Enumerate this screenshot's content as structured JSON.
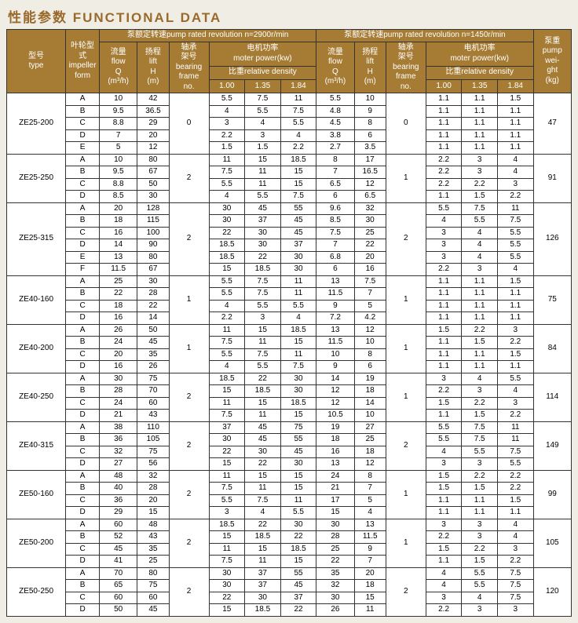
{
  "title": "性能参数 FUNCTIONAL DATA",
  "header": {
    "type": "型号\ntype",
    "impeller": "叶轮型式\nimpeller\nform",
    "rev2900": "泵额定转速pump rated revolution  n=2900r/min",
    "rev1450": "泵额定转速pump rated revolution  n=1450r/min",
    "flow": "流量\nflow\nQ\n(m³/h)",
    "lift": "扬程\nlift\nH\n(m)",
    "bearing": "轴承\n架号\nbearing\nframe\nno.",
    "motor": "电机功率\nmoter power(kw)",
    "density": "比重relative density",
    "d100": "1.00",
    "d135": "1.35",
    "d184": "1.84",
    "weight": "泵重\npump\nwei-\nght\n(kg)"
  },
  "models": [
    {
      "type": "ZE25-200",
      "weight": "47",
      "bf1": "0",
      "bf2": "0",
      "rows": [
        {
          "imp": "A",
          "q1": "10",
          "h1": "42",
          "p1": [
            "5.5",
            "7.5",
            "11"
          ],
          "q2": "5.5",
          "h2": "10",
          "p2": [
            "1.1",
            "1.1",
            "1.5"
          ]
        },
        {
          "imp": "B",
          "q1": "9.5",
          "h1": "36.5",
          "p1": [
            "4",
            "5.5",
            "7.5"
          ],
          "q2": "4.8",
          "h2": "9",
          "p2": [
            "1.1",
            "1.1",
            "1.1"
          ]
        },
        {
          "imp": "C",
          "q1": "8.8",
          "h1": "29",
          "p1": [
            "3",
            "4",
            "5.5"
          ],
          "q2": "4.5",
          "h2": "8",
          "p2": [
            "1.1",
            "1.1",
            "1.1"
          ]
        },
        {
          "imp": "D",
          "q1": "7",
          "h1": "20",
          "p1": [
            "2.2",
            "3",
            "4"
          ],
          "q2": "3.8",
          "h2": "6",
          "p2": [
            "1.1",
            "1.1",
            "1.1"
          ]
        },
        {
          "imp": "E",
          "q1": "5",
          "h1": "12",
          "p1": [
            "1.5",
            "1.5",
            "2.2"
          ],
          "q2": "2.7",
          "h2": "3.5",
          "p2": [
            "1.1",
            "1.1",
            "1.1"
          ]
        }
      ]
    },
    {
      "type": "ZE25-250",
      "weight": "91",
      "bf1": "2",
      "bf2": "1",
      "rows": [
        {
          "imp": "A",
          "q1": "10",
          "h1": "80",
          "p1": [
            "11",
            "15",
            "18.5"
          ],
          "q2": "8",
          "h2": "17",
          "p2": [
            "2.2",
            "3",
            "4"
          ]
        },
        {
          "imp": "B",
          "q1": "9.5",
          "h1": "67",
          "p1": [
            "7.5",
            "11",
            "15"
          ],
          "q2": "7",
          "h2": "16.5",
          "p2": [
            "2.2",
            "3",
            "4"
          ]
        },
        {
          "imp": "C",
          "q1": "8.8",
          "h1": "50",
          "p1": [
            "5.5",
            "11",
            "15"
          ],
          "q2": "6.5",
          "h2": "12",
          "p2": [
            "2.2",
            "2.2",
            "3"
          ]
        },
        {
          "imp": "D",
          "q1": "8.5",
          "h1": "30",
          "p1": [
            "4",
            "5.5",
            "7.5"
          ],
          "q2": "6",
          "h2": "6.5",
          "p2": [
            "1.1",
            "1.5",
            "2.2"
          ]
        }
      ]
    },
    {
      "type": "ZE25-315",
      "weight": "126",
      "bf1": "2",
      "bf2": "2",
      "rows": [
        {
          "imp": "A",
          "q1": "20",
          "h1": "128",
          "p1": [
            "30",
            "45",
            "55"
          ],
          "q2": "9.6",
          "h2": "32",
          "p2": [
            "5.5",
            "7.5",
            "11"
          ]
        },
        {
          "imp": "B",
          "q1": "18",
          "h1": "115",
          "p1": [
            "30",
            "37",
            "45"
          ],
          "q2": "8.5",
          "h2": "30",
          "p2": [
            "4",
            "5.5",
            "7.5"
          ]
        },
        {
          "imp": "C",
          "q1": "16",
          "h1": "100",
          "p1": [
            "22",
            "30",
            "45"
          ],
          "q2": "7.5",
          "h2": "25",
          "p2": [
            "3",
            "4",
            "5.5"
          ]
        },
        {
          "imp": "D",
          "q1": "14",
          "h1": "90",
          "p1": [
            "18.5",
            "30",
            "37"
          ],
          "q2": "7",
          "h2": "22",
          "p2": [
            "3",
            "4",
            "5.5"
          ]
        },
        {
          "imp": "E",
          "q1": "13",
          "h1": "80",
          "p1": [
            "18.5",
            "22",
            "30"
          ],
          "q2": "6.8",
          "h2": "20",
          "p2": [
            "3",
            "4",
            "5.5"
          ]
        },
        {
          "imp": "F",
          "q1": "11.5",
          "h1": "67",
          "p1": [
            "15",
            "18.5",
            "30"
          ],
          "q2": "6",
          "h2": "16",
          "p2": [
            "2.2",
            "3",
            "4"
          ]
        }
      ]
    },
    {
      "type": "ZE40-160",
      "weight": "75",
      "bf1": "1",
      "bf2": "1",
      "rows": [
        {
          "imp": "A",
          "q1": "25",
          "h1": "30",
          "p1": [
            "5.5",
            "7.5",
            "11"
          ],
          "q2": "13",
          "h2": "7.5",
          "p2": [
            "1.1",
            "1.1",
            "1.5"
          ]
        },
        {
          "imp": "B",
          "q1": "22",
          "h1": "28",
          "p1": [
            "5.5",
            "7.5",
            "11"
          ],
          "q2": "11.5",
          "h2": "7",
          "p2": [
            "1.1",
            "1.1",
            "1.1"
          ]
        },
        {
          "imp": "C",
          "q1": "18",
          "h1": "22",
          "p1": [
            "4",
            "5.5",
            "5.5"
          ],
          "q2": "9",
          "h2": "5",
          "p2": [
            "1.1",
            "1.1",
            "1.1"
          ]
        },
        {
          "imp": "D",
          "q1": "16",
          "h1": "14",
          "p1": [
            "2.2",
            "3",
            "4"
          ],
          "q2": "7.2",
          "h2": "4.2",
          "p2": [
            "1.1",
            "1.1",
            "1.1"
          ]
        }
      ]
    },
    {
      "type": "ZE40-200",
      "weight": "84",
      "bf1": "1",
      "bf2": "1",
      "rows": [
        {
          "imp": "A",
          "q1": "26",
          "h1": "50",
          "p1": [
            "11",
            "15",
            "18.5"
          ],
          "q2": "13",
          "h2": "12",
          "p2": [
            "1.5",
            "2.2",
            "3"
          ]
        },
        {
          "imp": "B",
          "q1": "24",
          "h1": "45",
          "p1": [
            "7.5",
            "11",
            "15"
          ],
          "q2": "11.5",
          "h2": "10",
          "p2": [
            "1.1",
            "1.5",
            "2.2"
          ]
        },
        {
          "imp": "C",
          "q1": "20",
          "h1": "35",
          "p1": [
            "5.5",
            "7.5",
            "11"
          ],
          "q2": "10",
          "h2": "8",
          "p2": [
            "1.1",
            "1.1",
            "1.5"
          ]
        },
        {
          "imp": "D",
          "q1": "16",
          "h1": "26",
          "p1": [
            "4",
            "5.5",
            "7.5"
          ],
          "q2": "9",
          "h2": "6",
          "p2": [
            "1.1",
            "1.1",
            "1.1"
          ]
        }
      ]
    },
    {
      "type": "ZE40-250",
      "weight": "114",
      "bf1": "2",
      "bf2": "1",
      "rows": [
        {
          "imp": "A",
          "q1": "30",
          "h1": "75",
          "p1": [
            "18.5",
            "22",
            "30"
          ],
          "q2": "14",
          "h2": "19",
          "p2": [
            "3",
            "4",
            "5.5"
          ]
        },
        {
          "imp": "B",
          "q1": "28",
          "h1": "70",
          "p1": [
            "15",
            "18.5",
            "30"
          ],
          "q2": "12",
          "h2": "18",
          "p2": [
            "2.2",
            "3",
            "4"
          ]
        },
        {
          "imp": "C",
          "q1": "24",
          "h1": "60",
          "p1": [
            "11",
            "15",
            "18.5"
          ],
          "q2": "12",
          "h2": "14",
          "p2": [
            "1.5",
            "2.2",
            "3"
          ]
        },
        {
          "imp": "D",
          "q1": "21",
          "h1": "43",
          "p1": [
            "7.5",
            "11",
            "15"
          ],
          "q2": "10.5",
          "h2": "10",
          "p2": [
            "1.1",
            "1.5",
            "2.2"
          ]
        }
      ]
    },
    {
      "type": "ZE40-315",
      "weight": "149",
      "bf1": "2",
      "bf2": "2",
      "rows": [
        {
          "imp": "A",
          "q1": "38",
          "h1": "110",
          "p1": [
            "37",
            "45",
            "75"
          ],
          "q2": "19",
          "h2": "27",
          "p2": [
            "5.5",
            "7.5",
            "11"
          ]
        },
        {
          "imp": "B",
          "q1": "36",
          "h1": "105",
          "p1": [
            "30",
            "45",
            "55"
          ],
          "q2": "18",
          "h2": "25",
          "p2": [
            "5.5",
            "7.5",
            "11"
          ]
        },
        {
          "imp": "C",
          "q1": "32",
          "h1": "75",
          "p1": [
            "22",
            "30",
            "45"
          ],
          "q2": "16",
          "h2": "18",
          "p2": [
            "4",
            "5.5",
            "7.5"
          ]
        },
        {
          "imp": "D",
          "q1": "27",
          "h1": "56",
          "p1": [
            "15",
            "22",
            "30"
          ],
          "q2": "13",
          "h2": "12",
          "p2": [
            "3",
            "3",
            "5.5"
          ]
        }
      ]
    },
    {
      "type": "ZE50-160",
      "weight": "99",
      "bf1": "2",
      "bf2": "1",
      "rows": [
        {
          "imp": "A",
          "q1": "48",
          "h1": "32",
          "p1": [
            "11",
            "15",
            "15"
          ],
          "q2": "24",
          "h2": "8",
          "p2": [
            "1.5",
            "2.2",
            "2.2"
          ]
        },
        {
          "imp": "B",
          "q1": "40",
          "h1": "28",
          "p1": [
            "7.5",
            "11",
            "15"
          ],
          "q2": "21",
          "h2": "7",
          "p2": [
            "1.5",
            "1.5",
            "2.2"
          ]
        },
        {
          "imp": "C",
          "q1": "36",
          "h1": "20",
          "p1": [
            "5.5",
            "7.5",
            "11"
          ],
          "q2": "17",
          "h2": "5",
          "p2": [
            "1.1",
            "1.1",
            "1.5"
          ]
        },
        {
          "imp": "D",
          "q1": "29",
          "h1": "15",
          "p1": [
            "3",
            "4",
            "5.5"
          ],
          "q2": "15",
          "h2": "4",
          "p2": [
            "1.1",
            "1.1",
            "1.1"
          ]
        }
      ]
    },
    {
      "type": "ZE50-200",
      "weight": "105",
      "bf1": "2",
      "bf2": "1",
      "rows": [
        {
          "imp": "A",
          "q1": "60",
          "h1": "48",
          "p1": [
            "18.5",
            "22",
            "30"
          ],
          "q2": "30",
          "h2": "13",
          "p2": [
            "3",
            "3",
            "4"
          ]
        },
        {
          "imp": "B",
          "q1": "52",
          "h1": "43",
          "p1": [
            "15",
            "18.5",
            "22"
          ],
          "q2": "28",
          "h2": "11.5",
          "p2": [
            "2.2",
            "3",
            "4"
          ]
        },
        {
          "imp": "C",
          "q1": "45",
          "h1": "35",
          "p1": [
            "11",
            "15",
            "18.5"
          ],
          "q2": "25",
          "h2": "9",
          "p2": [
            "1.5",
            "2.2",
            "3"
          ]
        },
        {
          "imp": "D",
          "q1": "41",
          "h1": "25",
          "p1": [
            "7.5",
            "11",
            "15"
          ],
          "q2": "22",
          "h2": "7",
          "p2": [
            "1.1",
            "1.5",
            "2.2"
          ]
        }
      ]
    },
    {
      "type": "ZE50-250",
      "weight": "120",
      "bf1": "2",
      "bf2": "2",
      "rows": [
        {
          "imp": "A",
          "q1": "70",
          "h1": "80",
          "p1": [
            "30",
            "37",
            "55"
          ],
          "q2": "35",
          "h2": "20",
          "p2": [
            "4",
            "5.5",
            "7.5"
          ]
        },
        {
          "imp": "B",
          "q1": "65",
          "h1": "75",
          "p1": [
            "30",
            "37",
            "45"
          ],
          "q2": "32",
          "h2": "18",
          "p2": [
            "4",
            "5.5",
            "7.5"
          ]
        },
        {
          "imp": "C",
          "q1": "60",
          "h1": "60",
          "p1": [
            "22",
            "30",
            "37"
          ],
          "q2": "30",
          "h2": "15",
          "p2": [
            "3",
            "4",
            "7.5"
          ]
        },
        {
          "imp": "D",
          "q1": "50",
          "h1": "45",
          "p1": [
            "15",
            "18.5",
            "22"
          ],
          "q2": "26",
          "h2": "11",
          "p2": [
            "2.2",
            "3",
            "3"
          ]
        }
      ]
    }
  ]
}
